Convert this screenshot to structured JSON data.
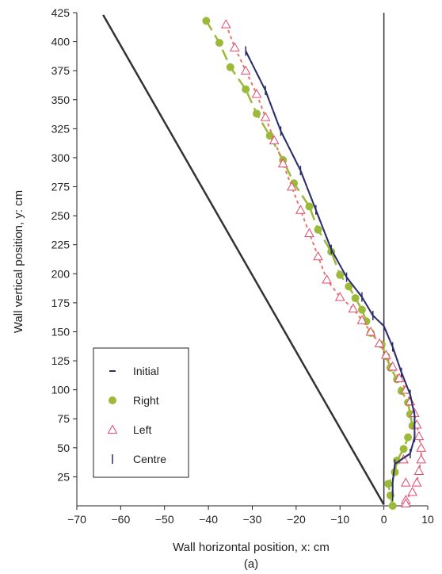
{
  "chart_data": {
    "type": "line",
    "xlabel": "Wall horizontal position, x: cm",
    "ylabel": "Wall vertical position, y: cm",
    "caption": "(a)",
    "xlim": [
      -70,
      10
    ],
    "ylim": [
      0,
      425
    ],
    "x_ticks": [
      -70,
      -60,
      -50,
      -40,
      -30,
      -20,
      -10,
      0,
      10
    ],
    "y_ticks": [
      25,
      50,
      75,
      100,
      125,
      150,
      175,
      200,
      225,
      250,
      275,
      300,
      325,
      350,
      375,
      400,
      425
    ],
    "grid": false,
    "legend_position": "bottom-left",
    "reference_lines": [
      {
        "x": [
          -64,
          0
        ],
        "y": [
          423,
          1
        ]
      },
      {
        "x": [
          0,
          0
        ],
        "y": [
          1,
          425
        ]
      }
    ],
    "series": [
      {
        "name": "Initial",
        "color": "#2b2f6b",
        "x": [
          -31.5,
          -27,
          -23.5,
          -19,
          -15.5,
          -12,
          -8.5,
          -5,
          -2.5,
          0,
          2,
          4,
          6,
          7,
          7,
          6,
          2.5,
          2,
          2
        ],
        "y": [
          392,
          358,
          323,
          289,
          255,
          221,
          197,
          180,
          164,
          155,
          137,
          115,
          96,
          78,
          59,
          45,
          36,
          20,
          8
        ]
      },
      {
        "name": "Right",
        "color": "#9cba3a",
        "x": [
          -40.5,
          -37.5,
          -35,
          -31.5,
          -29,
          -26,
          -23,
          -20.5,
          -17,
          -15,
          -12,
          -10,
          -8,
          -6.5,
          -5,
          -4,
          -3,
          -0.5,
          0.5,
          1.5,
          3,
          4,
          5.5,
          6,
          6.5,
          5.5,
          4.5,
          3,
          2.5,
          1,
          1.5,
          2
        ],
        "y": [
          418,
          399,
          378,
          359,
          338,
          319,
          298,
          278,
          258,
          238,
          219,
          199,
          189,
          179,
          169,
          159,
          149,
          139,
          129,
          119,
          109,
          99,
          89,
          79,
          69,
          59,
          49,
          39,
          29,
          19,
          9,
          0
        ]
      },
      {
        "name": "Left",
        "color": "#e8746a",
        "marker_color": "#e2486e",
        "x": [
          -36,
          -34,
          -31.5,
          -29,
          -27,
          -25,
          -23,
          -21,
          -19,
          -17,
          -15,
          -13,
          -10,
          -7,
          -5,
          -3,
          -1,
          0.5,
          2,
          3.5,
          5,
          6,
          7,
          7.5,
          8,
          8.5,
          8.5,
          8,
          7.5,
          6.5,
          5,
          4.5,
          5,
          5
        ],
        "y": [
          415,
          395,
          375,
          355,
          335,
          315,
          295,
          275,
          255,
          235,
          215,
          195,
          180,
          170,
          160,
          150,
          140,
          130,
          120,
          110,
          100,
          90,
          80,
          70,
          60,
          50,
          40,
          30,
          20,
          12,
          5,
          40,
          20,
          2
        ]
      },
      {
        "name": "Centre",
        "color": "#2b2f6b",
        "x": [
          -31.5,
          -27,
          -23.5,
          -19,
          -15.5,
          -12,
          -8.5,
          -5,
          -2.5,
          0,
          2,
          4,
          6,
          7,
          7,
          6,
          2.5,
          2,
          2
        ],
        "y": [
          392,
          358,
          323,
          289,
          255,
          221,
          197,
          180,
          164,
          155,
          137,
          115,
          96,
          78,
          59,
          45,
          36,
          20,
          8
        ]
      }
    ]
  }
}
